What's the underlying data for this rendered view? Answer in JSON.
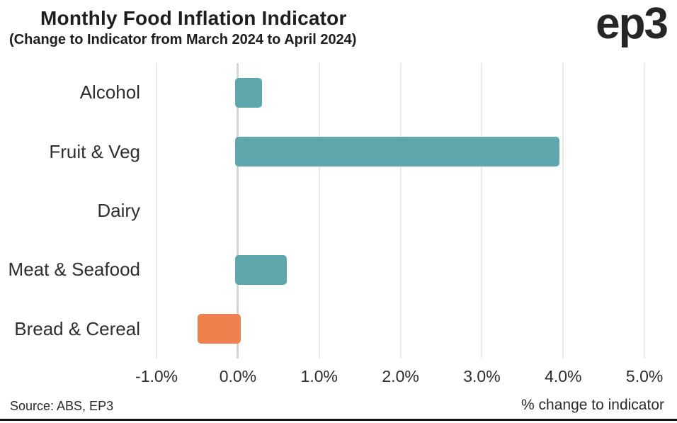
{
  "header": {
    "title": "Monthly Food Inflation Indicator",
    "subtitle": "(Change to Indicator from March 2024 to April 2024)",
    "logo": "ep3"
  },
  "footer": {
    "source": "Source: ABS, EP3",
    "xlabel": "% change to indicator"
  },
  "colors": {
    "text": "#1e1e1e",
    "positive_bar": "#5fa7ad",
    "negative_bar": "#f0814e",
    "gridline": "#eceae3",
    "zero_line": "#d6d6d6",
    "footer_rule": "#14141b"
  },
  "chart_data": {
    "type": "bar",
    "orientation": "horizontal",
    "title": "Monthly Food Inflation Indicator",
    "subtitle": "(Change to Indicator from March 2024 to April 2024)",
    "categories": [
      "Alcohol",
      "Fruit & Veg",
      "Dairy",
      "Meat & Seafood",
      "Bread & Cereal"
    ],
    "values": [
      0.3,
      3.95,
      0.0,
      0.6,
      -0.5
    ],
    "bar_colors": [
      "#5fa7ad",
      "#5fa7ad",
      "#5fa7ad",
      "#5fa7ad",
      "#f0814e"
    ],
    "xlabel": "% change to indicator",
    "ylabel": "",
    "xlim": [
      -1.14,
      5.26
    ],
    "x_ticks": [
      {
        "v": -1,
        "label": "-1.0%"
      },
      {
        "v": 0,
        "label": "0.0%"
      },
      {
        "v": 1,
        "label": "1.0%"
      },
      {
        "v": 2,
        "label": "2.0%"
      },
      {
        "v": 3,
        "label": "3.0%"
      },
      {
        "v": 4,
        "label": "4.0%"
      },
      {
        "v": 5,
        "label": "5.0%"
      }
    ],
    "grid": "vertical-only",
    "legend": "none",
    "source": "Source: ABS, EP3"
  }
}
